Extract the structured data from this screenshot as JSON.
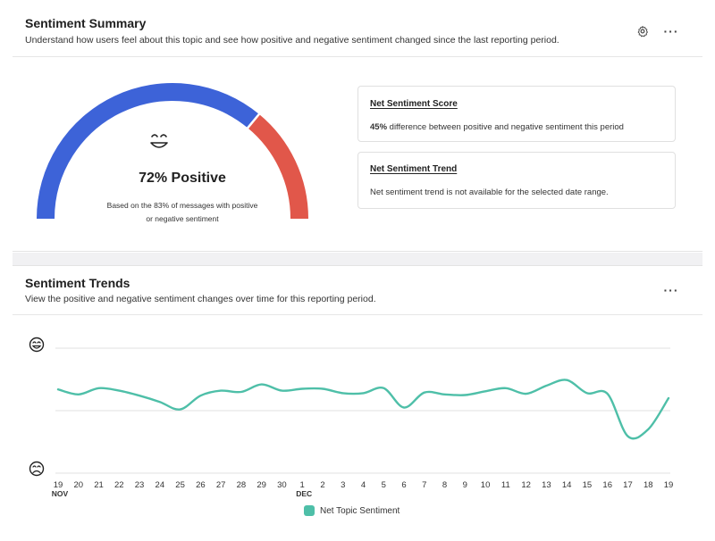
{
  "summary": {
    "title": "Sentiment Summary",
    "subtitle": "Understand how users feel about this topic and see how positive and negative sentiment changed since the last reporting period.",
    "settings_icon": "gear-icon",
    "more_icon": "more-horizontal-icon",
    "more_label": "···",
    "gauge": {
      "positive_fraction": 0.72,
      "positive_color": "#3d63d8",
      "negative_color": "#e1574a",
      "face_icon": "smiling-face-icon",
      "percent_label": "72% Positive",
      "basis_line1": "Based on the 83% of messages with positive",
      "basis_line2": "or negative sentiment"
    },
    "net_score": {
      "title": "Net Sentiment Score",
      "value": "45%",
      "text": " difference between positive and negative sentiment this period"
    },
    "net_trend": {
      "title": "Net Sentiment Trend",
      "text": "Net sentiment trend is not available for the selected date range."
    }
  },
  "trends": {
    "title": "Sentiment Trends",
    "subtitle": "View the positive and negative sentiment changes over time for this reporting period.",
    "more_label": "···",
    "positive_icon": "happy-face-icon",
    "negative_icon": "sad-face-icon",
    "legend_label": "Net Topic Sentiment",
    "line_color": "#4ebfa8"
  },
  "chart_data": {
    "type": "line",
    "x": [
      "19",
      "20",
      "21",
      "22",
      "23",
      "24",
      "25",
      "26",
      "27",
      "28",
      "29",
      "30",
      "1",
      "2",
      "3",
      "4",
      "5",
      "6",
      "7",
      "8",
      "9",
      "10",
      "11",
      "12",
      "13",
      "14",
      "15",
      "16",
      "17",
      "18",
      "19"
    ],
    "month_labels": [
      {
        "index": 0,
        "label": "NOV"
      },
      {
        "index": 12,
        "label": "DEC"
      }
    ],
    "ylim": [
      -1,
      1
    ],
    "grid": true,
    "legend_position": "bottom",
    "series": [
      {
        "name": "Net Topic Sentiment",
        "values": [
          0.34,
          0.26,
          0.36,
          0.32,
          0.24,
          0.14,
          0.02,
          0.24,
          0.32,
          0.3,
          0.42,
          0.32,
          0.35,
          0.35,
          0.28,
          0.28,
          0.36,
          0.05,
          0.29,
          0.26,
          0.25,
          0.31,
          0.36,
          0.27,
          0.4,
          0.49,
          0.28,
          0.27,
          -0.41,
          -0.3,
          0.2
        ]
      }
    ]
  }
}
